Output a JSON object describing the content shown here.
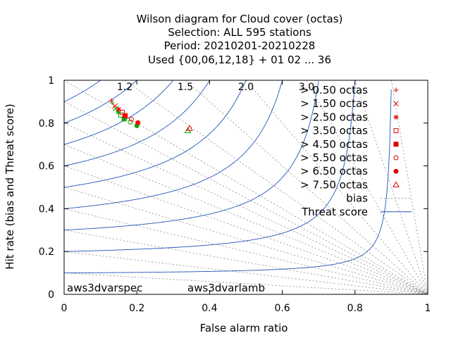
{
  "chart_data": {
    "type": "scatter",
    "title_lines": [
      "Wilson diagram  for Cloud cover (octas)",
      "Selection: ALL    595 stations",
      "Period: 20210201-20210228",
      "Used {00,06,12,18} + 01 02 ... 36"
    ],
    "xlabel": "False alarm ratio",
    "ylabel": "Hit rate (bias and Threat score)",
    "xlim": [
      0,
      1
    ],
    "ylim": [
      0,
      1
    ],
    "x_ticks": [
      "0",
      "0.2",
      "0.4",
      "0.6",
      "0.8",
      "1"
    ],
    "y_ticks": [
      "0",
      "0.2",
      "0.4",
      "0.6",
      "0.8",
      "1"
    ],
    "bias_values": [
      1.2,
      1.5,
      2.0,
      3.0
    ],
    "bias_labels": [
      "1.2",
      "1.5",
      "2.0",
      "3.0"
    ],
    "bias_line_values": [
      0.1,
      0.2,
      0.3,
      0.4,
      0.5,
      0.6,
      0.7,
      0.8,
      0.9,
      1.0,
      1.2,
      1.5,
      2.0,
      3.0,
      5.0,
      10.0
    ],
    "threat_score_values": [
      0.1,
      0.2,
      0.3,
      0.4,
      0.5,
      0.6,
      0.7,
      0.8,
      0.9
    ],
    "legend": [
      {
        "label": "> 0.50 octas",
        "marker": "plus"
      },
      {
        "label": "> 1.50 octas",
        "marker": "cross"
      },
      {
        "label": "> 2.50 octas",
        "marker": "star"
      },
      {
        "label": "> 3.50 octas",
        "marker": "square-open"
      },
      {
        "label": "> 4.50 octas",
        "marker": "square-filled"
      },
      {
        "label": "> 5.50 octas",
        "marker": "circle-open"
      },
      {
        "label": "> 6.50 octas",
        "marker": "circle-filled"
      },
      {
        "label": "> 7.50 octas",
        "marker": "triangle-open"
      },
      {
        "label": "bias",
        "marker": "dotted-line"
      },
      {
        "label": "Threat score",
        "marker": "solid-line"
      }
    ],
    "series": [
      {
        "name": "aws3dvarspec",
        "color": "#ff0000",
        "points": [
          {
            "marker": "plus",
            "x": 0.13,
            "y": 0.905
          },
          {
            "marker": "cross",
            "x": 0.14,
            "y": 0.88
          },
          {
            "marker": "star",
            "x": 0.15,
            "y": 0.865
          },
          {
            "marker": "square-open",
            "x": 0.16,
            "y": 0.85
          },
          {
            "marker": "square-filled",
            "x": 0.168,
            "y": 0.835
          },
          {
            "marker": "circle-open",
            "x": 0.185,
            "y": 0.818
          },
          {
            "marker": "circle-filled",
            "x": 0.203,
            "y": 0.802
          },
          {
            "marker": "triangle-open",
            "x": 0.345,
            "y": 0.775
          }
        ]
      },
      {
        "name": "aws3dvarlamb",
        "color": "#00aa00",
        "points": [
          {
            "marker": "plus",
            "x": 0.132,
            "y": 0.895
          },
          {
            "marker": "cross",
            "x": 0.142,
            "y": 0.868
          },
          {
            "marker": "star",
            "x": 0.148,
            "y": 0.852
          },
          {
            "marker": "square-open",
            "x": 0.156,
            "y": 0.838
          },
          {
            "marker": "square-filled",
            "x": 0.165,
            "y": 0.82
          },
          {
            "marker": "circle-open",
            "x": 0.182,
            "y": 0.805
          },
          {
            "marker": "circle-filled",
            "x": 0.2,
            "y": 0.788
          },
          {
            "marker": "triangle-open",
            "x": 0.34,
            "y": 0.765
          }
        ]
      }
    ],
    "colors": {
      "threat": "#2255bb",
      "bias": "#888888",
      "bias_label": "#888888",
      "legend_marker": "#dd0000"
    }
  }
}
